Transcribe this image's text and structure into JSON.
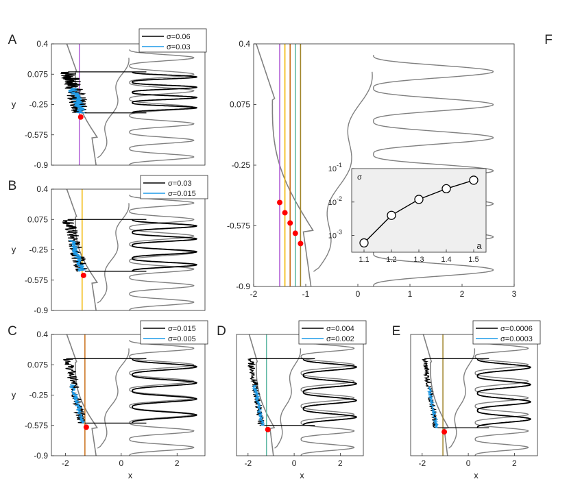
{
  "chart_data": [
    {
      "panel": "A",
      "type": "line",
      "xlim": [
        -2.5,
        3
      ],
      "ylim": [
        -0.9,
        0.4
      ],
      "yticks": [
        "0.4",
        "0.075",
        "-0.25",
        "-0.575",
        "-0.9"
      ],
      "xticks": [],
      "ylabel": "y",
      "xlabel": "",
      "a": 1.5,
      "vline_color": "#b25fd6",
      "legend": [
        {
          "label": "σ=0.06",
          "color": "#000000"
        },
        {
          "label": "σ=0.03",
          "color": "#1e9be8"
        }
      ],
      "cycle": {
        "y_top": 0.1,
        "y_bottom": -0.34,
        "noise_hi": 0.06,
        "noise_lo": 0.03
      }
    },
    {
      "panel": "B",
      "type": "line",
      "xlim": [
        -2.5,
        3
      ],
      "ylim": [
        -0.9,
        0.4
      ],
      "yticks": [
        "0.4",
        "0.075",
        "-0.25",
        "-0.575",
        "-0.9"
      ],
      "xticks": [],
      "ylabel": "y",
      "xlabel": "",
      "a": 1.4,
      "vline_color": "#f2b705",
      "legend": [
        {
          "label": "σ=0.03",
          "color": "#000000"
        },
        {
          "label": "σ=0.015",
          "color": "#1e9be8"
        }
      ],
      "cycle": {
        "y_top": 0.075,
        "y_bottom": -0.48,
        "noise_hi": 0.03,
        "noise_lo": 0.015
      }
    },
    {
      "panel": "C",
      "type": "line",
      "xlim": [
        -2.5,
        3
      ],
      "ylim": [
        -0.9,
        0.4
      ],
      "yticks": [
        "0.4",
        "0.075",
        "-0.25",
        "-0.575",
        "-0.9"
      ],
      "xticks": [
        "-2",
        "0",
        "2"
      ],
      "ylabel": "y",
      "xlabel": "x",
      "a": 1.3,
      "vline_color": "#c9701a",
      "legend": [
        {
          "label": "σ=0.015",
          "color": "#000000"
        },
        {
          "label": "σ=0.005",
          "color": "#1e9be8"
        }
      ],
      "cycle": {
        "y_top": 0.14,
        "y_bottom": -0.55,
        "noise_hi": 0.015,
        "noise_lo": 0.005
      }
    },
    {
      "panel": "D",
      "type": "line",
      "xlim": [
        -2.5,
        3
      ],
      "ylim": [
        -0.9,
        0.4
      ],
      "yticks": [],
      "xticks": [
        "-2",
        "0",
        "2"
      ],
      "ylabel": "",
      "xlabel": "x",
      "a": 1.2,
      "vline_color": "#5fb8a4",
      "legend": [
        {
          "label": "σ=0.004",
          "color": "#000000"
        },
        {
          "label": "σ=0.002",
          "color": "#1e9be8"
        }
      ],
      "cycle": {
        "y_top": 0.14,
        "y_bottom": -0.575,
        "noise_hi": 0.004,
        "noise_lo": 0.002
      }
    },
    {
      "panel": "E",
      "type": "line",
      "xlim": [
        -2.5,
        3
      ],
      "ylim": [
        -0.9,
        0.4
      ],
      "yticks": [],
      "xticks": [
        "-2",
        "0",
        "2"
      ],
      "ylabel": "",
      "xlabel": "x",
      "a": 1.1,
      "vline_color": "#a0852a",
      "legend": [
        {
          "label": "σ=0.0006",
          "color": "#000000"
        },
        {
          "label": "σ=0.0003",
          "color": "#1e9be8"
        }
      ],
      "cycle": {
        "y_top": 0.14,
        "y_bottom": -0.6,
        "noise_hi": 0.0006,
        "noise_lo": 0.0003
      }
    },
    {
      "panel": "F",
      "type": "line",
      "xlim": [
        -2,
        3
      ],
      "ylim": [
        -0.9,
        0.4
      ],
      "yticks": [
        "0.4",
        "0.075",
        "-0.25",
        "-0.575",
        "-0.9"
      ],
      "xticks": [
        "-2",
        "-1",
        "0",
        "1",
        "2",
        "3"
      ],
      "ylabel": "",
      "xlabel": "",
      "vlines": [
        {
          "a": 1.5,
          "color": "#b25fd6"
        },
        {
          "a": 1.4,
          "color": "#f2b705"
        },
        {
          "a": 1.3,
          "color": "#c9701a"
        },
        {
          "a": 1.2,
          "color": "#5fb8a4"
        },
        {
          "a": 1.1,
          "color": "#a0852a"
        }
      ],
      "inset": {
        "type": "scatter",
        "xlabel": "a",
        "ylabel": "σ",
        "yscale": "log",
        "x": [
          1.1,
          1.2,
          1.3,
          1.4,
          1.5
        ],
        "y": [
          0.0006,
          0.004,
          0.012,
          0.025,
          0.045
        ],
        "xticks": [
          "1.1",
          "1.2",
          "1.3",
          "1.4",
          "1.5"
        ],
        "yticks": [
          {
            "base": "10",
            "exp": "-1",
            "v": 0.1
          },
          {
            "base": "10",
            "exp": "-2",
            "v": 0.01
          },
          {
            "base": "10",
            "exp": "-3",
            "v": 0.001
          }
        ]
      }
    }
  ]
}
